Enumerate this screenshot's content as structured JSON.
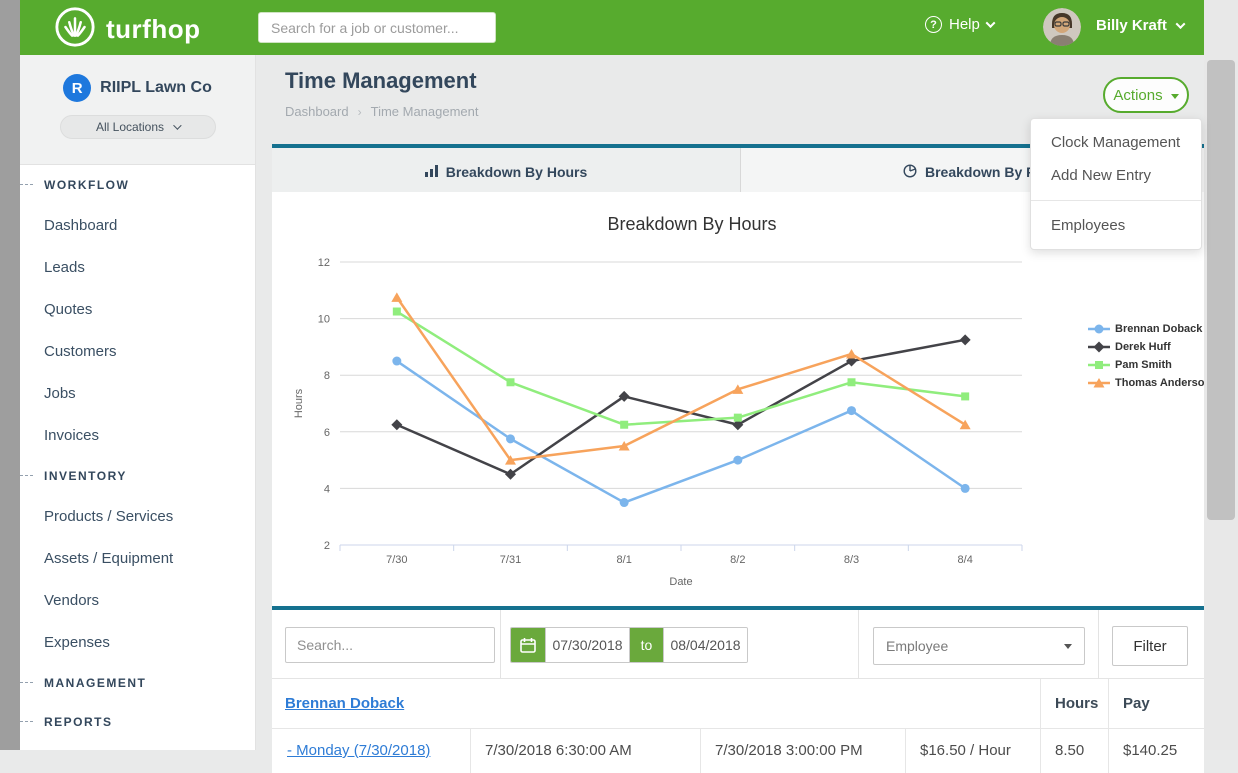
{
  "header": {
    "brand": "turfhop",
    "search_placeholder": "Search for a job or customer...",
    "help_label": "Help",
    "user_name": "Billy Kraft"
  },
  "sidebar": {
    "company_name": "RIIPL Lawn Co",
    "company_initial": "R",
    "locations_dropdown": "All Locations",
    "sections": [
      {
        "label": "WORKFLOW",
        "items": [
          "Dashboard",
          "Leads",
          "Quotes",
          "Customers",
          "Jobs",
          "Invoices"
        ]
      },
      {
        "label": "INVENTORY",
        "items": [
          "Products / Services",
          "Assets / Equipment",
          "Vendors",
          "Expenses"
        ]
      },
      {
        "label": "MANAGEMENT",
        "items": []
      },
      {
        "label": "REPORTS",
        "items": []
      }
    ]
  },
  "page": {
    "title": "Time Management",
    "breadcrumb": [
      "Dashboard",
      "Time Management"
    ],
    "actions_button": "Actions",
    "actions_menu": [
      "Clock Management",
      "Add New Entry",
      "Employees"
    ],
    "tab_hours": "Breakdown By Hours",
    "tab_pay": "Breakdown By Pay"
  },
  "chart_data": {
    "type": "line",
    "title": "Breakdown By Hours",
    "xlabel": "Date",
    "ylabel": "Hours",
    "ylim": [
      2,
      12
    ],
    "yticks": [
      2,
      4,
      6,
      8,
      10,
      12
    ],
    "grid": true,
    "legend_position": "right",
    "categories": [
      "7/30",
      "7/31",
      "8/1",
      "8/2",
      "8/3",
      "8/4"
    ],
    "series": [
      {
        "name": "Brennan Doback",
        "color": "#7cb5ec",
        "marker": "circle",
        "values": [
          8.5,
          5.75,
          3.5,
          5.0,
          6.75,
          4.0
        ]
      },
      {
        "name": "Derek Huff",
        "color": "#434348",
        "marker": "diamond",
        "values": [
          6.25,
          4.5,
          7.25,
          6.25,
          8.5,
          9.25
        ]
      },
      {
        "name": "Pam Smith",
        "color": "#90ed7d",
        "marker": "square",
        "values": [
          10.25,
          7.75,
          6.25,
          6.5,
          7.75,
          7.25
        ]
      },
      {
        "name": "Thomas Anderson",
        "color": "#f7a35c",
        "marker": "triangle",
        "values": [
          10.75,
          5.0,
          5.5,
          7.5,
          8.75,
          6.25
        ]
      }
    ]
  },
  "filter_bar": {
    "search_placeholder": "Search...",
    "date_from": "07/30/2018",
    "to_label": "to",
    "date_to": "08/04/2018",
    "employee_dropdown": "Employee",
    "filter_button": "Filter"
  },
  "timesheet_table": {
    "employee_link": "Brennan Doback",
    "hours_header": "Hours",
    "pay_header": "Pay",
    "rows": [
      {
        "day_link": "- Monday (7/30/2018)",
        "clock_in": "7/30/2018 6:30:00 AM",
        "clock_out": "7/30/2018 3:00:00 PM",
        "rate": "$16.50 / Hour",
        "hours": "8.50",
        "pay": "$140.25"
      }
    ]
  },
  "colors": {
    "brand_green": "#57ab2e",
    "button_green": "#6aa93c",
    "teal_accent": "#15718f",
    "link_blue": "#2e7cd6",
    "navy_text": "#33475c"
  }
}
